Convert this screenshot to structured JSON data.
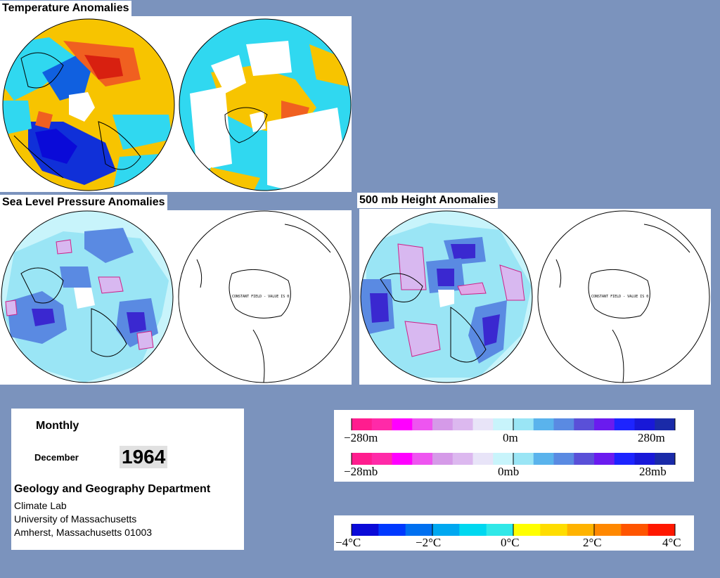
{
  "titles": {
    "temperature": "Temperature Anomalies",
    "slp": "Sea Level Pressure Anomalies",
    "height500": "500 mb Height Anomalies"
  },
  "constant_field_note": "CONSTANT FIELD - VALUE IS 0",
  "info": {
    "period": "Monthly",
    "month": "December",
    "year": "1964",
    "department": "Geology and Geography Department",
    "lab": "Climate Lab",
    "university": "University of Massachusetts",
    "address": "Amherst, Massachusetts 01003"
  },
  "legend_height": {
    "min_label": "−280m",
    "mid_label": "0m",
    "max_label": "280m",
    "colors": [
      "#ff1d8e",
      "#ff2aa8",
      "#ff00ff",
      "#ee55f0",
      "#d59ae8",
      "#dcb8ef",
      "#e8e4f8",
      "#c8f4fb",
      "#9ae5f5",
      "#5ab3ec",
      "#5a8ae2",
      "#5a50d8",
      "#6a1bef",
      "#1d24ff",
      "#1818d8",
      "#1a2aa8"
    ]
  },
  "legend_pressure": {
    "min_label": "−28mb",
    "mid_label": "0mb",
    "max_label": "28mb"
  },
  "legend_temperature": {
    "min_label": "−4°C",
    "m2_label": "−2°C",
    "zero_label": "0°C",
    "p2_label": "2°C",
    "max_label": "4°C",
    "colors": [
      "#0a0ad8",
      "#0039ff",
      "#0070f0",
      "#00a8f0",
      "#00d8f0",
      "#30e8e8",
      "#ffff00",
      "#ffdd00",
      "#ffb300",
      "#ff8800",
      "#ff5500",
      "#ff1800"
    ]
  },
  "map_colors": {
    "temp_warm": "#f7c400",
    "temp_orange": "#f06020",
    "temp_red": "#d82010",
    "temp_cyan": "#30d8f0",
    "temp_blue": "#1030d8",
    "pale_cyan": "#c8f4fb",
    "light_blue": "#9ae5f5",
    "mid_blue": "#5a8ae2",
    "deep_blue": "#3a28d0",
    "lavender": "#d8b8f0",
    "pink": "#e0a8e8"
  }
}
